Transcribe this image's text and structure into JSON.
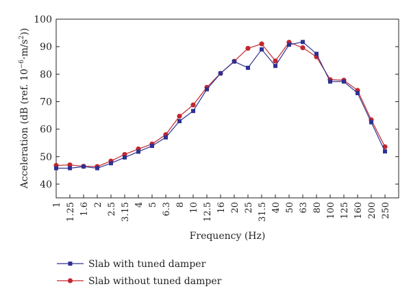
{
  "chart_data": {
    "type": "line",
    "xlabel": "Frequency (Hz)",
    "ylabel_prefix": "Acceleration (dB (ref. 10",
    "ylabel_exp1": "−6",
    "ylabel_mid": "·m/s",
    "ylabel_exp2": "2",
    "ylabel_suffix": "))",
    "ylim": [
      35,
      100
    ],
    "yticks": [
      40,
      50,
      60,
      70,
      80,
      90,
      100
    ],
    "categories": [
      "1",
      "1.25",
      "1.6",
      "2",
      "2.5",
      "3.15",
      "4",
      "5",
      "6.3",
      "8",
      "10",
      "12.5",
      "16",
      "20",
      "25",
      "31.5",
      "40",
      "50",
      "63",
      "80",
      "100",
      "125",
      "160",
      "200",
      "250"
    ],
    "series": [
      {
        "name": "Slab with tuned damper",
        "color": "#2e3192",
        "marker": "square",
        "values": [
          45.8,
          45.8,
          46.4,
          45.8,
          47.6,
          49.7,
          51.8,
          53.9,
          57.0,
          62.9,
          66.6,
          74.5,
          80.3,
          84.6,
          82.3,
          89.0,
          83.0,
          90.7,
          91.7,
          87.4,
          77.3,
          77.3,
          73.1,
          62.5,
          51.9
        ]
      },
      {
        "name": "Slab without tuned damper",
        "color": "#c1272d",
        "marker": "circle",
        "values": [
          46.8,
          47.0,
          46.5,
          46.4,
          48.4,
          50.8,
          52.8,
          54.6,
          58.0,
          64.7,
          68.8,
          75.2,
          80.3,
          84.7,
          89.4,
          91.0,
          84.8,
          91.6,
          89.6,
          86.3,
          78.0,
          77.8,
          74.1,
          63.4,
          53.6
        ]
      }
    ],
    "legend_position": "bottom-left"
  }
}
